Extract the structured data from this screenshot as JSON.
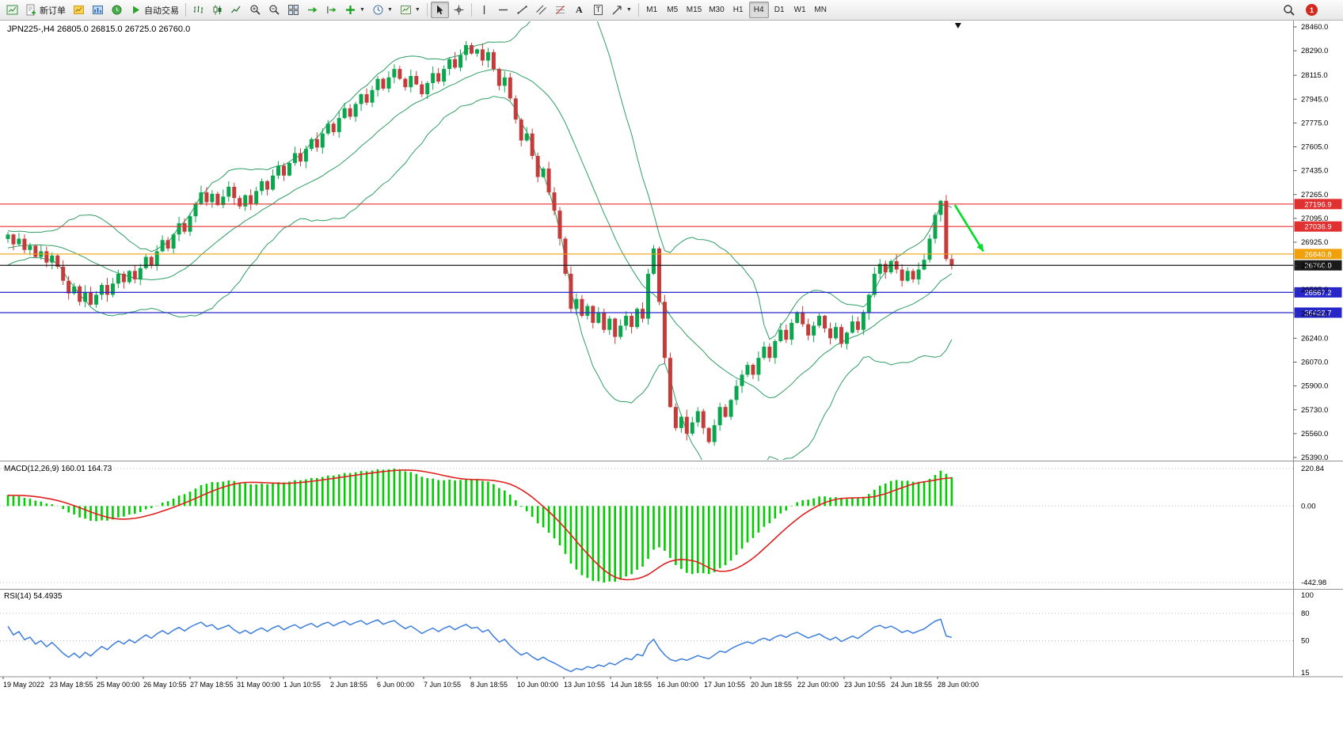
{
  "toolbar": {
    "new_order_label": "新订单",
    "auto_trading_label": "自动交易",
    "timeframes": [
      "M1",
      "M5",
      "M15",
      "M30",
      "H1",
      "H4",
      "D1",
      "W1",
      "MN"
    ],
    "active_timeframe": "H4",
    "notification_count": "1",
    "text_tool_glyph": "A",
    "label_tool_glyph": "T"
  },
  "chart": {
    "title": "JPN225-,H4 26805.0 26815.0 26725.0 26760.0"
  },
  "chart_data": {
    "type": "candlestick",
    "symbol": "JPN225-",
    "timeframe": "H4",
    "ohlc": {
      "open": 26805.0,
      "high": 26815.0,
      "low": 26725.0,
      "close": 26760.0
    },
    "price_range": {
      "min": 25390,
      "max": 28460
    },
    "price_axis_ticks": [
      28460,
      28290,
      28115,
      27945,
      27775,
      27605,
      27435,
      27265,
      27095,
      26925,
      26755,
      26585,
      26415,
      26240,
      26070,
      25900,
      25730,
      25560,
      25390
    ],
    "closes": [
      26980,
      26910,
      26950,
      26870,
      26900,
      26820,
      26860,
      26780,
      26830,
      26750,
      26650,
      26560,
      26610,
      26500,
      26570,
      26480,
      26550,
      26620,
      26550,
      26630,
      26700,
      26640,
      26720,
      26660,
      26740,
      26820,
      26760,
      26860,
      26940,
      26880,
      26980,
      27060,
      27000,
      27110,
      27200,
      27280,
      27210,
      27270,
      27190,
      27250,
      27320,
      27240,
      27180,
      27260,
      27200,
      27290,
      27360,
      27300,
      27400,
      27470,
      27400,
      27490,
      27560,
      27500,
      27590,
      27660,
      27600,
      27700,
      27770,
      27710,
      27810,
      27880,
      27820,
      27910,
      27980,
      27920,
      28010,
      28090,
      28020,
      28100,
      28160,
      28090,
      28030,
      28110,
      28050,
      27980,
      28060,
      28130,
      28070,
      28160,
      28230,
      28170,
      28260,
      28330,
      28270,
      28300,
      28220,
      28280,
      28160,
      28040,
      28100,
      27950,
      27800,
      27650,
      27700,
      27540,
      27390,
      27450,
      27280,
      27150,
      26950,
      26700,
      26450,
      26520,
      26400,
      26470,
      26350,
      26420,
      26300,
      26380,
      26250,
      26330,
      26400,
      26320,
      26450,
      26380,
      26700,
      26880,
      26500,
      26100,
      25750,
      25600,
      25680,
      25560,
      25640,
      25720,
      25600,
      25500,
      25620,
      25750,
      25680,
      25800,
      25900,
      25980,
      26050,
      25980,
      26100,
      26180,
      26100,
      26220,
      26300,
      26230,
      26350,
      26420,
      26340,
      26260,
      26330,
      26400,
      26310,
      26240,
      26320,
      26200,
      26280,
      26360,
      26300,
      26420,
      26550,
      26700,
      26770,
      26710,
      26790,
      26730,
      26650,
      26720,
      26660,
      26730,
      26800,
      26950,
      27120,
      27220,
      26805,
      26760
    ],
    "colors": {
      "up": "#0aa64e",
      "down": "#c43b3b",
      "bollinger": "#2f9e63",
      "macd_hist": "#00cc00",
      "macd_signal": "#e01f1f",
      "rsi": "#3d7edb"
    },
    "bollinger": {
      "period": 20,
      "deviation": 2
    },
    "price_lines": [
      {
        "value": 27196.9,
        "label": "27196.9",
        "color": "#e03030"
      },
      {
        "value": 27036.9,
        "label": "27036.9",
        "color": "#e03030"
      },
      {
        "value": 26840.8,
        "label": "26840.8",
        "color": "#efa00b"
      },
      {
        "value": 26760.0,
        "label": "26760.0",
        "color": "#1a1a1a"
      },
      {
        "value": 26567.2,
        "label": "26567.2",
        "color": "#2727c9"
      },
      {
        "value": 26422.7,
        "label": "26422.7",
        "color": "#2727c9"
      }
    ],
    "arrow": {
      "from_price": 27190,
      "to_price": 26860,
      "color": "#00dd26"
    },
    "macd": {
      "display": "MACD(12,26,9) 160.01 164.73",
      "params": [
        12,
        26,
        9
      ],
      "value_main": 160.01,
      "value_signal": 164.73,
      "axis_labels": [
        "220.84",
        "0.00",
        "-442.98"
      ]
    },
    "rsi": {
      "display": "RSI(14) 54.4935",
      "period": 14,
      "value": 54.4935,
      "axis_labels": [
        100,
        80,
        50,
        15
      ],
      "levels": [
        80,
        50
      ]
    },
    "time_axis": [
      "19 May 2022",
      "23 May 18:55",
      "25 May 00:00",
      "26 May 10:55",
      "27 May 18:55",
      "31 May 00:00",
      "1 Jun 10:55",
      "2 Jun 18:55",
      "6 Jun 00:00",
      "7 Jun 10:55",
      "8 Jun 18:55",
      "10 Jun 00:00",
      "13 Jun 10:55",
      "14 Jun 18:55",
      "16 Jun 00:00",
      "17 Jun 10:55",
      "20 Jun 18:55",
      "22 Jun 00:00",
      "23 Jun 10:55",
      "24 Jun 18:55",
      "28 Jun 00:00"
    ]
  }
}
